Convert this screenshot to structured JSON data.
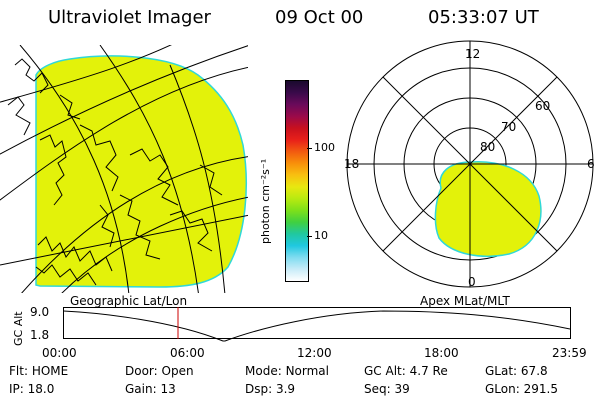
{
  "header": {
    "title": "Ultraviolet Imager",
    "date": "09 Oct 00",
    "time": "05:33:07 UT"
  },
  "colorbar": {
    "unit_label": "photon cm⁻²s⁻¹",
    "ticks": [
      "100",
      "10"
    ],
    "colors": [
      "#1a0a2e",
      "#3a0a4a",
      "#6a0a5a",
      "#9a0a4a",
      "#c8101e",
      "#e8201a",
      "#f25a10",
      "#f8900a",
      "#f8c010",
      "#e8e810",
      "#b8ea10",
      "#7ee01a",
      "#40d040",
      "#20c8a0",
      "#20c8e0",
      "#80dcf0",
      "#c8ecf8",
      "#ffffff"
    ],
    "fill_color": "#e3f20a",
    "edge_color": "#30d8d8"
  },
  "left_map": {
    "label": "Geographic Lat/Lon"
  },
  "right_map": {
    "label": "Apex MLat/MLT",
    "mlt_labels": {
      "top": "12",
      "left": "18",
      "right": "6",
      "bottom": "0"
    },
    "lat_labels": [
      "80",
      "70",
      "60"
    ]
  },
  "timeline": {
    "y_axis_label": "GC Alt",
    "y_ticks": [
      "9.0",
      "1.8"
    ],
    "x_ticks": [
      "00:00",
      "06:00",
      "12:00",
      "18:00",
      "23:59"
    ],
    "marker_color": "#cc0000"
  },
  "status": {
    "row1": [
      {
        "label": "Flt:",
        "value": "HOME"
      },
      {
        "label": "Door:",
        "value": "Open"
      },
      {
        "label": "Mode:",
        "value": "Normal"
      },
      {
        "label": "GC Alt:",
        "value": "4.7 Re"
      },
      {
        "label": "GLat:",
        "value": "67.8"
      }
    ],
    "row2": [
      {
        "label": "IP:",
        "value": "18.0"
      },
      {
        "label": "Gain:",
        "value": "13"
      },
      {
        "label": "Dsp:",
        "value": "3.9"
      },
      {
        "label": "Seq:",
        "value": "39"
      },
      {
        "label": "GLon:",
        "value": "291.5"
      }
    ]
  }
}
